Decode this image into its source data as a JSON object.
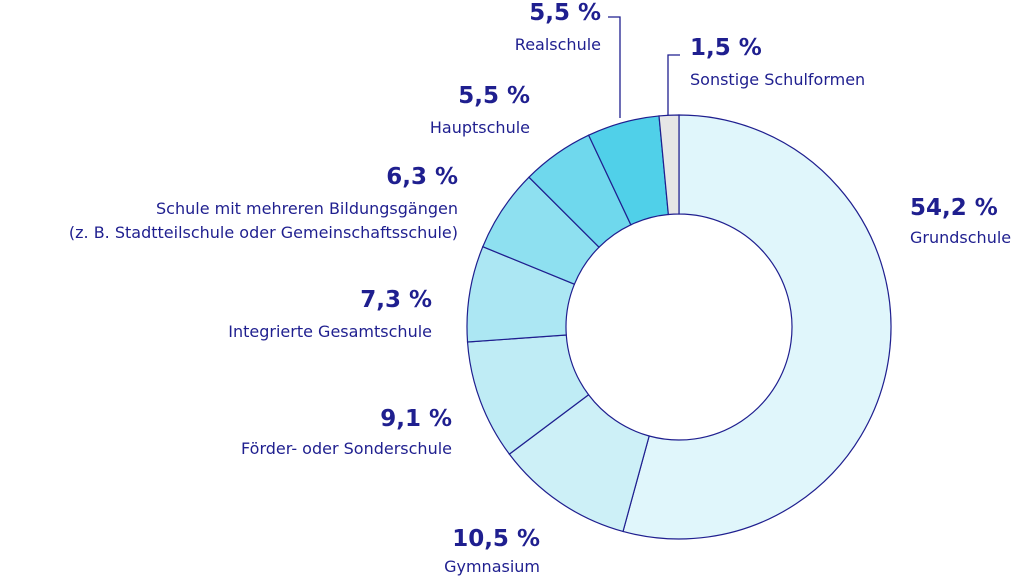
{
  "chart_data": {
    "type": "donut",
    "categories": [
      "Grundschule",
      "Gymnasium",
      "Förder- oder Sonderschule",
      "Integrierte Gesamtschule",
      "Schule mit mehreren Bildungsgängen\n(z. B. Stadtteilschule oder Gemeinschaftsschule)",
      "Hauptschule",
      "Realschule",
      "Sonstige Schulformen"
    ],
    "values": [
      54.2,
      10.5,
      9.1,
      7.3,
      6.3,
      5.5,
      5.5,
      1.5
    ],
    "value_labels": [
      "54,2 %",
      "10,5 %",
      "9,1 %",
      "7,3 %",
      "6,3 %",
      "5,5 %",
      "5,5 %",
      "1,5 %"
    ],
    "colors": [
      "#e0f6fb",
      "#cdf0f7",
      "#bfecf5",
      "#ace7f3",
      "#8ee0f0",
      "#6fd8ed",
      "#50d0e9",
      "#e6e6e6"
    ]
  }
}
